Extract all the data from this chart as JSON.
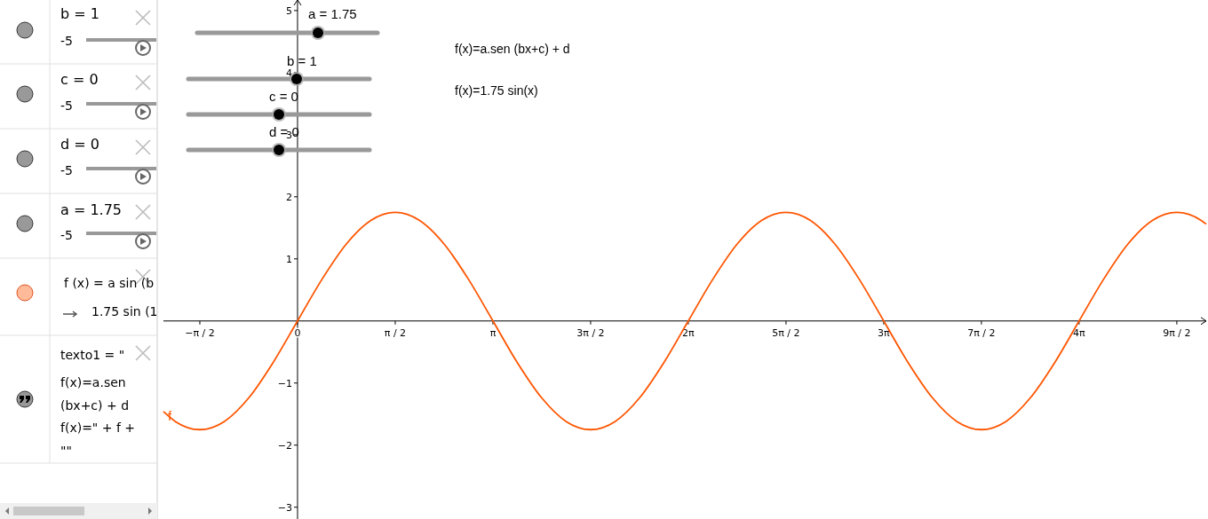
{
  "chart_data": {
    "type": "line",
    "x": [
      -2.156,
      -1.963,
      -1.571,
      -1.178,
      -0.785,
      -0.393,
      0,
      0.393,
      0.785,
      1.178,
      1.571,
      1.963,
      2.356,
      2.749,
      3.142,
      3.534,
      3.927,
      4.32,
      4.712,
      5.105,
      5.498,
      5.89,
      6.283,
      6.676,
      7.069,
      7.461,
      7.854,
      8.247,
      8.639,
      9.032,
      9.425,
      9.817,
      10.21,
      10.603,
      10.996,
      11.388,
      11.781,
      12.174,
      12.566,
      12.959,
      13.352,
      13.744,
      14.137,
      14.53,
      14.61
    ],
    "series": [
      {
        "name": "f",
        "color": "#ff5500",
        "values": [
          -1.46,
          -1.62,
          -1.75,
          -1.62,
          -1.24,
          -0.67,
          0,
          0.67,
          1.24,
          1.62,
          1.75,
          1.62,
          1.24,
          0.67,
          0,
          -0.67,
          -1.24,
          -1.62,
          -1.75,
          -1.62,
          -1.24,
          -0.67,
          0,
          0.67,
          1.24,
          1.62,
          1.75,
          1.62,
          1.24,
          0.67,
          0,
          -0.67,
          -1.24,
          -1.62,
          -1.75,
          -1.62,
          -1.24,
          -0.67,
          0,
          0.67,
          1.24,
          1.62,
          1.75,
          1.62,
          1.56
        ]
      }
    ],
    "xlim": [
      -2.156,
      14.61
    ],
    "ylim": [
      -3.19,
      5.17
    ],
    "xticks": [
      {
        "value": -1.5708,
        "label": "−π / 2"
      },
      {
        "value": 0,
        "label": "0"
      },
      {
        "value": 1.5708,
        "label": "π / 2"
      },
      {
        "value": 3.1416,
        "label": "π"
      },
      {
        "value": 4.7124,
        "label": "3π / 2"
      },
      {
        "value": 6.2832,
        "label": "2π"
      },
      {
        "value": 7.854,
        "label": "5π / 2"
      },
      {
        "value": 9.4248,
        "label": "3π"
      },
      {
        "value": 10.9956,
        "label": "7π / 2"
      },
      {
        "value": 12.5664,
        "label": "4π"
      },
      {
        "value": 14.1372,
        "label": "9π / 2"
      }
    ],
    "yticks": [
      {
        "value": -3,
        "label": "−3"
      },
      {
        "value": -2,
        "label": "−2"
      },
      {
        "value": -1,
        "label": "−1"
      },
      1,
      2,
      3,
      4,
      5
    ],
    "grid": false,
    "marker": "none",
    "line_style": "solid",
    "annotations": [
      "f(x)=a.sen (bx+c) + d",
      "f(x)=1.75 sin(x)",
      "a = 1.75",
      "b = 1",
      "c = 0",
      "d = 0",
      "b = 1",
      "-5",
      "c = 0",
      "-5",
      "d = 0",
      "-5",
      "a = 1.75",
      "-5",
      "f (x) = a  sin (b",
      "1.75  sin (1",
      "texto1 = \"",
      "f(x)=a.sen",
      "(bx+c) + d",
      "f(x)=\" + f +",
      "\"\""
    ]
  }
}
